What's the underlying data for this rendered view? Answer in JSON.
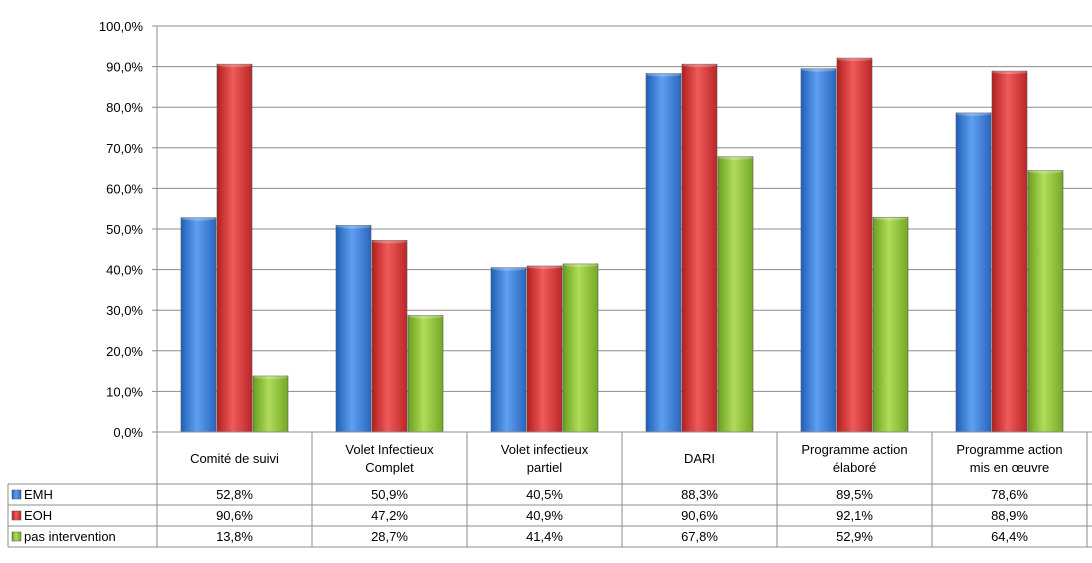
{
  "chart_data": {
    "type": "bar",
    "title": "",
    "xlabel": "",
    "ylabel": "",
    "ylim": [
      0,
      100
    ],
    "yticks": [
      "0,0%",
      "10,0%",
      "20,0%",
      "30,0%",
      "40,0%",
      "50,0%",
      "60,0%",
      "70,0%",
      "80,0%",
      "90,0%",
      "100,0%"
    ],
    "grid": true,
    "legend": "data-table-left",
    "categories": [
      [
        "Comité de suivi"
      ],
      [
        "Volet Infectieux",
        "Complet"
      ],
      [
        "Volet infectieux",
        "partiel"
      ],
      [
        "DARI"
      ],
      [
        "Programme action",
        "élaboré"
      ],
      [
        "Programme action",
        "mis en œuvre"
      ]
    ],
    "series": [
      {
        "name": "EMH",
        "color": "#3f7fd6",
        "values": [
          52.8,
          50.9,
          40.5,
          88.3,
          89.5,
          78.6
        ],
        "labels": [
          "52,8%",
          "50,9%",
          "40,5%",
          "88,3%",
          "89,5%",
          "78,6%"
        ]
      },
      {
        "name": "EOH",
        "color": "#d63a3a",
        "values": [
          90.6,
          47.2,
          40.9,
          90.6,
          92.1,
          88.9
        ],
        "labels": [
          "90,6%",
          "47,2%",
          "40,9%",
          "90,6%",
          "92,1%",
          "88,9%"
        ]
      },
      {
        "name": "pas intervention",
        "color": "#8cc03a",
        "values": [
          13.8,
          28.7,
          41.4,
          67.8,
          52.9,
          64.4
        ],
        "labels": [
          "13,8%",
          "28,7%",
          "41,4%",
          "67,8%",
          "52,9%",
          "64,4%"
        ]
      }
    ]
  }
}
